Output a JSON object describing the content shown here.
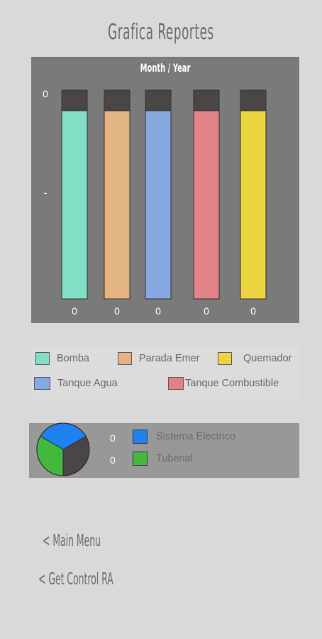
{
  "page": {
    "title": "Grafica Reportes"
  },
  "chart_data": {
    "type": "bar",
    "title": "Month / Year",
    "categories": [
      "Bomba",
      "Parada Emer",
      "Tanque Agua",
      "Tanque Combustible",
      "Quemador"
    ],
    "values": [
      0,
      0,
      0,
      0,
      0
    ],
    "value_labels": [
      "0",
      "0",
      "0",
      "0",
      "0"
    ],
    "y_tick_labels": [
      "0",
      "-"
    ],
    "colors": [
      "#7fe0c6",
      "#e3b482",
      "#86a9e0",
      "#e28288",
      "#ecd53f"
    ],
    "cap_color": "#4a4646"
  },
  "legend": {
    "items": [
      {
        "label": "Bomba",
        "color": "#7fe0c6"
      },
      {
        "label": "Parada Emer",
        "color": "#e3b482"
      },
      {
        "label": "Quemador",
        "color": "#ecd53f"
      },
      {
        "label": "Tanque Agua",
        "color": "#86a9e0"
      },
      {
        "label": "Tanque Combustible",
        "color": "#e28288"
      }
    ]
  },
  "pie": {
    "values": [
      "0",
      "0"
    ],
    "items": [
      {
        "label": "Sistema Electrico",
        "color": "#1e82f0"
      },
      {
        "label": "Tuberial",
        "color": "#43b93b"
      }
    ],
    "remainder_color": "#4a4646"
  },
  "menu": {
    "main_menu": "< Main Menu",
    "get_control": "< Get Control RA"
  }
}
